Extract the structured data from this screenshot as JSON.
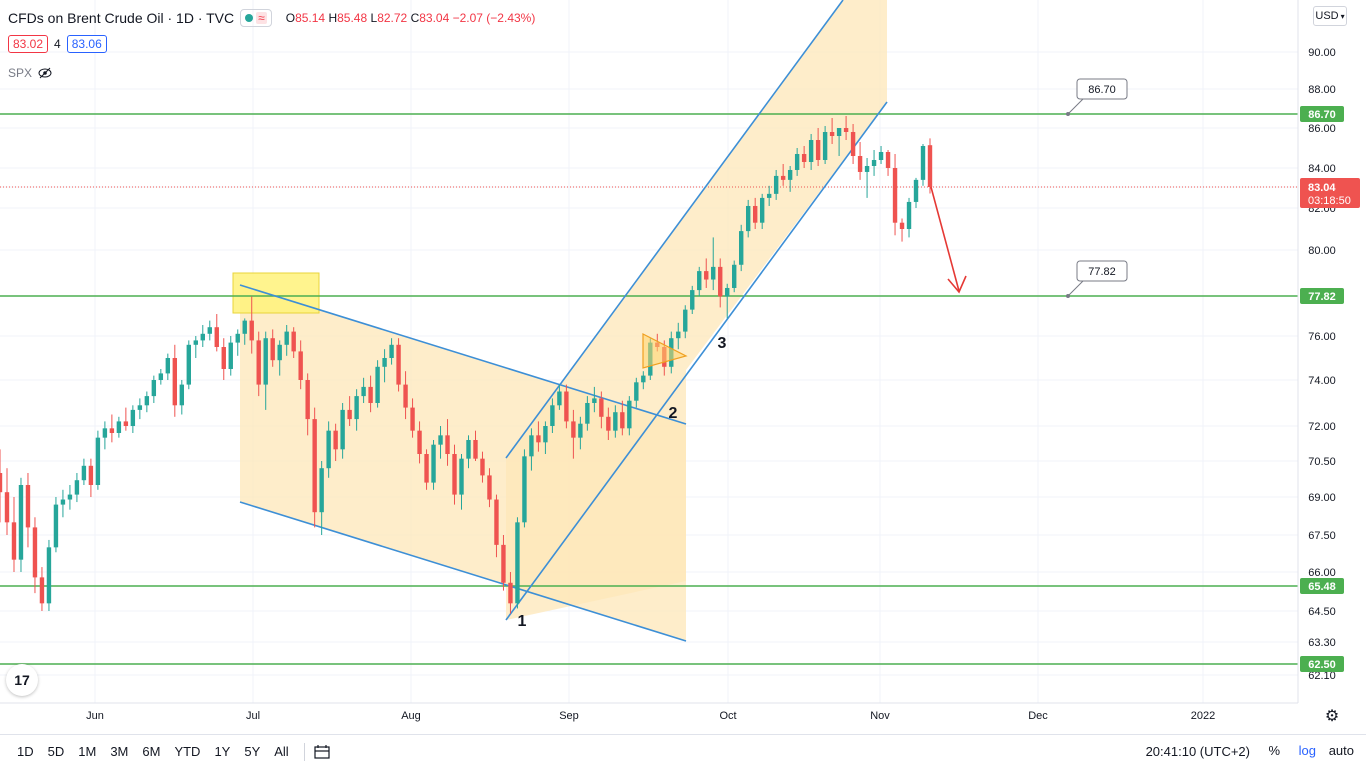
{
  "header": {
    "symbol": "CFDs on Brent Crude Oil · 1D · TVC",
    "open_label": "O",
    "open": "85.14",
    "high_label": "H",
    "high": "85.48",
    "low_label": "L",
    "low": "82.72",
    "close_label": "C",
    "close": "83.04",
    "change": "−2.07 (−2.43%)"
  },
  "quote": {
    "bid": "83.02",
    "spread": "4",
    "ask": "83.06"
  },
  "indicator": {
    "name": "SPX"
  },
  "currency": "USD",
  "bottom": {
    "ranges": [
      "1D",
      "5D",
      "1M",
      "3M",
      "6M",
      "YTD",
      "1Y",
      "5Y",
      "All"
    ],
    "clock": "20:41:10 (UTC+2)",
    "percent": "%",
    "log": "log",
    "auto": "auto"
  },
  "colors": {
    "up": "#26a69a",
    "down": "#ef5350",
    "level": "#4caf50",
    "channel": "#3d8fd6",
    "zone": "#fde7b8",
    "arrow": "#e53935"
  },
  "chart_data": {
    "type": "candlestick",
    "title": "CFDs on Brent Crude Oil · 1D · TVC",
    "x_ticks": [
      "Jun",
      "Jul",
      "Aug",
      "Sep",
      "Oct",
      "Nov",
      "Dec",
      "2022"
    ],
    "y_ticks": [
      "62.10",
      "62.50",
      "63.30",
      "64.50",
      "65.48",
      "66.00",
      "67.50",
      "69.00",
      "70.50",
      "72.00",
      "74.00",
      "76.00",
      "77.82",
      "80.00",
      "82.00",
      "83.04",
      "84.00",
      "86.00",
      "86.70",
      "88.00",
      "90.00"
    ],
    "levels": [
      {
        "value": 86.7,
        "label": "86.70"
      },
      {
        "value": 77.82,
        "label": "77.82"
      },
      {
        "value": 65.48,
        "label": "65.48"
      },
      {
        "value": 62.5,
        "label": "62.50"
      }
    ],
    "last_price": {
      "value": "83.04",
      "countdown": "03:18:50"
    },
    "callouts": [
      "86.70",
      "77.82"
    ],
    "wave_labels": [
      "1",
      "2",
      "3"
    ],
    "series": [
      {
        "name": "Brent",
        "values": [
          [
            70.0,
            71.0,
            68.0,
            69.2
          ],
          [
            69.2,
            70.2,
            67.5,
            68.0
          ],
          [
            68.0,
            69.0,
            66.0,
            66.5
          ],
          [
            66.5,
            69.8,
            66.0,
            69.5
          ],
          [
            69.5,
            70.0,
            67.0,
            67.8
          ],
          [
            67.8,
            68.2,
            65.2,
            65.8
          ],
          [
            65.8,
            66.2,
            64.5,
            64.8
          ],
          [
            64.8,
            67.3,
            64.5,
            67.0
          ],
          [
            67.0,
            69.0,
            66.8,
            68.7
          ],
          [
            68.7,
            69.3,
            68.2,
            68.9
          ],
          [
            68.9,
            69.5,
            68.5,
            69.1
          ],
          [
            69.1,
            70.0,
            68.8,
            69.7
          ],
          [
            69.7,
            70.6,
            69.5,
            70.3
          ],
          [
            70.3,
            70.6,
            69.0,
            69.5
          ],
          [
            69.5,
            71.8,
            69.3,
            71.5
          ],
          [
            71.5,
            72.2,
            71.0,
            71.9
          ],
          [
            71.9,
            72.5,
            71.3,
            71.7
          ],
          [
            71.7,
            72.4,
            71.5,
            72.2
          ],
          [
            72.2,
            72.8,
            71.8,
            72.0
          ],
          [
            72.0,
            72.9,
            71.7,
            72.7
          ],
          [
            72.7,
            73.2,
            72.3,
            72.9
          ],
          [
            72.9,
            73.5,
            72.6,
            73.3
          ],
          [
            73.3,
            74.2,
            73.0,
            74.0
          ],
          [
            74.0,
            74.5,
            73.8,
            74.3
          ],
          [
            74.3,
            75.2,
            74.0,
            75.0
          ],
          [
            75.0,
            75.6,
            72.4,
            72.9
          ],
          [
            72.9,
            74.0,
            72.5,
            73.8
          ],
          [
            73.8,
            75.8,
            73.6,
            75.6
          ],
          [
            75.6,
            76.0,
            75.0,
            75.8
          ],
          [
            75.8,
            76.5,
            75.5,
            76.1
          ],
          [
            76.1,
            76.7,
            75.8,
            76.4
          ],
          [
            76.4,
            77.0,
            75.3,
            75.5
          ],
          [
            75.5,
            75.9,
            74.0,
            74.5
          ],
          [
            74.5,
            76.0,
            74.2,
            75.7
          ],
          [
            75.7,
            76.3,
            75.1,
            76.1
          ],
          [
            76.1,
            76.8,
            75.6,
            76.7
          ],
          [
            76.7,
            77.8,
            75.2,
            75.8
          ],
          [
            75.8,
            76.2,
            73.3,
            73.8
          ],
          [
            73.8,
            76.2,
            72.7,
            75.9
          ],
          [
            75.9,
            76.3,
            74.6,
            74.9
          ],
          [
            74.9,
            75.8,
            74.2,
            75.6
          ],
          [
            75.6,
            76.5,
            75.1,
            76.2
          ],
          [
            76.2,
            76.4,
            75.0,
            75.3
          ],
          [
            75.3,
            75.8,
            73.6,
            74.0
          ],
          [
            74.0,
            74.3,
            71.6,
            72.3
          ],
          [
            72.3,
            72.8,
            67.8,
            68.4
          ],
          [
            68.4,
            70.5,
            67.5,
            70.2
          ],
          [
            70.2,
            72.2,
            69.8,
            71.8
          ],
          [
            71.8,
            72.1,
            70.5,
            71.0
          ],
          [
            71.0,
            73.0,
            70.6,
            72.7
          ],
          [
            72.7,
            73.3,
            72.0,
            72.3
          ],
          [
            72.3,
            73.6,
            71.8,
            73.3
          ],
          [
            73.3,
            74.1,
            73.0,
            73.7
          ],
          [
            73.7,
            74.2,
            72.6,
            73.0
          ],
          [
            73.0,
            74.9,
            72.8,
            74.6
          ],
          [
            74.6,
            75.4,
            73.9,
            75.0
          ],
          [
            75.0,
            75.9,
            74.7,
            75.6
          ],
          [
            75.6,
            75.9,
            73.5,
            73.8
          ],
          [
            73.8,
            74.4,
            72.3,
            72.8
          ],
          [
            72.8,
            73.2,
            71.5,
            71.8
          ],
          [
            71.8,
            72.2,
            70.4,
            70.8
          ],
          [
            70.8,
            71.0,
            69.3,
            69.6
          ],
          [
            69.6,
            71.4,
            69.3,
            71.2
          ],
          [
            71.2,
            72.0,
            70.6,
            71.6
          ],
          [
            71.6,
            72.3,
            70.3,
            70.8
          ],
          [
            70.8,
            71.2,
            68.7,
            69.1
          ],
          [
            69.1,
            70.8,
            68.5,
            70.6
          ],
          [
            70.6,
            71.6,
            70.2,
            71.4
          ],
          [
            71.4,
            71.8,
            70.5,
            70.6
          ],
          [
            70.6,
            70.9,
            69.6,
            69.9
          ],
          [
            69.9,
            70.2,
            68.6,
            68.9
          ],
          [
            68.9,
            69.1,
            66.6,
            67.1
          ],
          [
            67.1,
            67.5,
            65.3,
            65.6
          ],
          [
            65.6,
            66.0,
            64.4,
            64.8
          ],
          [
            64.8,
            68.2,
            64.6,
            68.0
          ],
          [
            68.0,
            71.0,
            67.8,
            70.7
          ],
          [
            70.7,
            71.9,
            70.1,
            71.6
          ],
          [
            71.6,
            72.2,
            70.9,
            71.3
          ],
          [
            71.3,
            72.2,
            70.8,
            72.0
          ],
          [
            72.0,
            73.2,
            71.7,
            72.9
          ],
          [
            72.9,
            73.8,
            72.7,
            73.5
          ],
          [
            73.5,
            73.8,
            71.9,
            72.2
          ],
          [
            72.2,
            72.7,
            70.6,
            71.5
          ],
          [
            71.5,
            72.4,
            71.0,
            72.1
          ],
          [
            72.1,
            73.3,
            71.8,
            73.0
          ],
          [
            73.0,
            73.7,
            72.6,
            73.2
          ],
          [
            73.2,
            73.5,
            71.9,
            72.4
          ],
          [
            72.4,
            72.8,
            71.4,
            71.8
          ],
          [
            71.8,
            72.9,
            71.5,
            72.6
          ],
          [
            72.6,
            73.1,
            71.6,
            71.9
          ],
          [
            71.9,
            73.3,
            71.6,
            73.1
          ],
          [
            73.1,
            74.1,
            72.8,
            73.9
          ],
          [
            73.9,
            74.4,
            73.6,
            74.2
          ],
          [
            74.2,
            75.9,
            74.0,
            75.7
          ],
          [
            75.7,
            76.1,
            75.3,
            75.5
          ],
          [
            75.5,
            75.8,
            74.2,
            74.6
          ],
          [
            74.6,
            76.2,
            74.3,
            75.9
          ],
          [
            75.9,
            76.6,
            75.4,
            76.2
          ],
          [
            76.2,
            77.4,
            75.9,
            77.2
          ],
          [
            77.2,
            78.3,
            77.0,
            78.1
          ],
          [
            78.1,
            79.2,
            77.8,
            79.0
          ],
          [
            79.0,
            79.6,
            78.2,
            78.6
          ],
          [
            78.6,
            80.6,
            78.1,
            79.2
          ],
          [
            79.2,
            79.6,
            77.3,
            77.8
          ],
          [
            77.8,
            78.4,
            76.8,
            78.2
          ],
          [
            78.2,
            79.5,
            78.0,
            79.3
          ],
          [
            79.3,
            81.2,
            79.0,
            80.9
          ],
          [
            80.9,
            82.4,
            80.6,
            82.1
          ],
          [
            82.1,
            82.5,
            81.0,
            81.3
          ],
          [
            81.3,
            82.7,
            81.0,
            82.5
          ],
          [
            82.5,
            83.1,
            82.1,
            82.7
          ],
          [
            82.7,
            83.9,
            82.4,
            83.6
          ],
          [
            83.6,
            84.2,
            83.1,
            83.4
          ],
          [
            83.4,
            84.1,
            82.8,
            83.9
          ],
          [
            83.9,
            85.0,
            83.6,
            84.7
          ],
          [
            84.7,
            85.1,
            84.0,
            84.3
          ],
          [
            84.3,
            85.7,
            83.9,
            85.4
          ],
          [
            85.4,
            86.0,
            84.1,
            84.4
          ],
          [
            84.4,
            86.1,
            84.2,
            85.8
          ],
          [
            85.8,
            86.5,
            85.2,
            85.6
          ],
          [
            85.6,
            86.0,
            84.6,
            86.0
          ],
          [
            86.0,
            86.6,
            85.4,
            85.8
          ],
          [
            85.8,
            86.2,
            84.2,
            84.6
          ],
          [
            84.6,
            85.3,
            83.4,
            83.8
          ],
          [
            83.8,
            84.5,
            82.5,
            84.1
          ],
          [
            84.1,
            84.9,
            83.6,
            84.4
          ],
          [
            84.4,
            85.1,
            84.2,
            84.8
          ],
          [
            84.8,
            84.9,
            83.6,
            84.0
          ],
          [
            84.0,
            84.7,
            80.7,
            81.3
          ],
          [
            81.3,
            81.5,
            80.4,
            81.0
          ],
          [
            81.0,
            82.5,
            80.6,
            82.3
          ],
          [
            82.3,
            83.5,
            82.0,
            83.4
          ],
          [
            83.4,
            85.2,
            83.1,
            85.1
          ],
          [
            85.14,
            85.48,
            82.72,
            83.04
          ]
        ]
      }
    ]
  }
}
